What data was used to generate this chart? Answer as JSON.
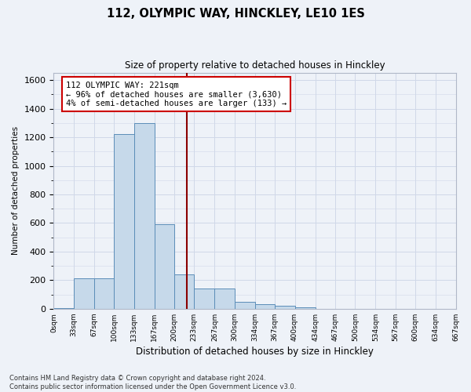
{
  "title": "112, OLYMPIC WAY, HINCKLEY, LE10 1ES",
  "subtitle": "Size of property relative to detached houses in Hinckley",
  "xlabel": "Distribution of detached houses by size in Hinckley",
  "ylabel": "Number of detached properties",
  "footer_line1": "Contains HM Land Registry data © Crown copyright and database right 2024.",
  "footer_line2": "Contains public sector information licensed under the Open Government Licence v3.0.",
  "property_size": 221,
  "bin_edges": [
    0,
    33,
    67,
    100,
    133,
    167,
    200,
    233,
    267,
    300,
    334,
    367,
    400,
    434,
    467,
    500,
    534,
    567,
    600,
    634,
    667
  ],
  "bar_heights": [
    5,
    215,
    215,
    1220,
    1300,
    590,
    240,
    140,
    140,
    50,
    30,
    20,
    10,
    0,
    0,
    0,
    0,
    0,
    0,
    0
  ],
  "bar_facecolor": "#c6d9ea",
  "bar_edgecolor": "#5b8db8",
  "vline_color": "#8b0000",
  "vline_x": 221,
  "ylim": [
    0,
    1650
  ],
  "yticks": [
    0,
    200,
    400,
    600,
    800,
    1000,
    1200,
    1400,
    1600
  ],
  "annotation_line1": "112 OLYMPIC WAY: 221sqm",
  "annotation_line2": "← 96% of detached houses are smaller (3,630)",
  "annotation_line3": "4% of semi-detached houses are larger (133) →",
  "annotation_box_facecolor": "#ffffff",
  "annotation_box_edgecolor": "#cc0000",
  "grid_color": "#d0d8e8",
  "bg_color": "#eef2f8",
  "xtick_labels": [
    "0sqm",
    "33sqm",
    "67sqm",
    "100sqm",
    "133sqm",
    "167sqm",
    "200sqm",
    "233sqm",
    "267sqm",
    "300sqm",
    "334sqm",
    "367sqm",
    "400sqm",
    "434sqm",
    "467sqm",
    "500sqm",
    "534sqm",
    "567sqm",
    "600sqm",
    "634sqm",
    "667sqm"
  ]
}
